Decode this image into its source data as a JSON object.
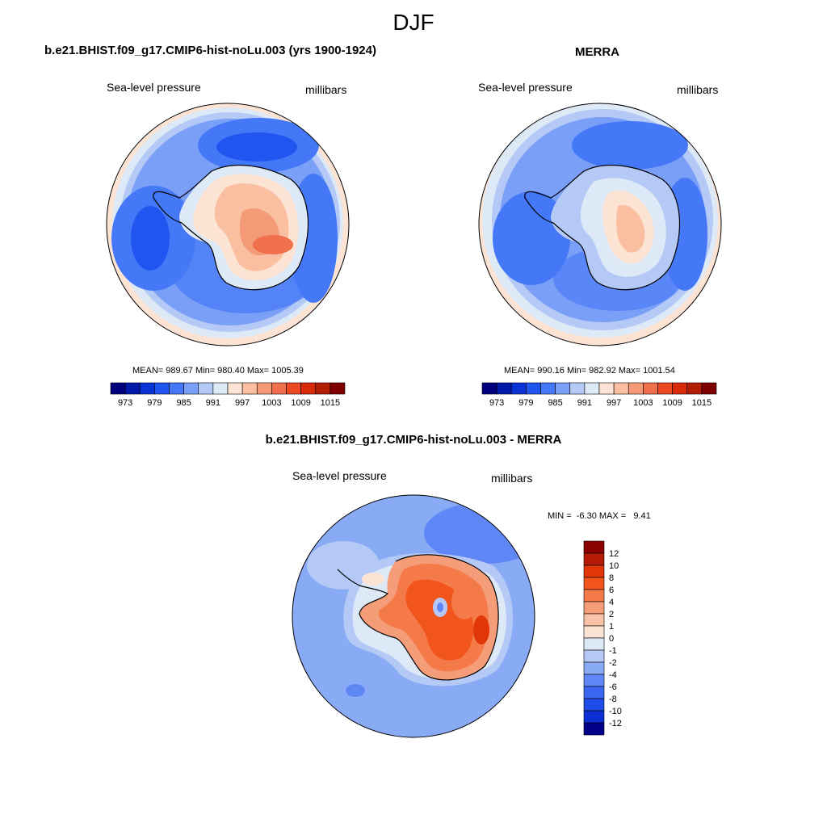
{
  "figure_title": "DJF",
  "panels": {
    "model": {
      "title": "b.e21.BHIST.f09_g17.CMIP6-hist-noLu.003 (yrs 1900-1924)",
      "left_label": "Sea-level pressure",
      "right_label": "millibars",
      "stats": "MEAN= 989.67  Min= 980.40  Max= 1005.39"
    },
    "obs": {
      "title": "MERRA",
      "left_label": "Sea-level pressure",
      "right_label": "millibars",
      "stats": "MEAN= 990.16  Min= 982.92  Max= 1001.54"
    },
    "diff": {
      "title": "b.e21.BHIST.f09_g17.CMIP6-hist-noLu.003 - MERRA",
      "left_label": "Sea-level pressure",
      "right_label": "millibars",
      "stats": "MIN =  -6.30 MAX =   9.41"
    }
  },
  "colorbar_abs": {
    "colors": [
      "#00007f",
      "#0019a8",
      "#0a33d6",
      "#2055f0",
      "#4578f7",
      "#7a9ff7",
      "#b5c9f7",
      "#dde9f7",
      "#fde3d3",
      "#f9bfa0",
      "#f49a76",
      "#f06f4c",
      "#ec4a23",
      "#d72b0a",
      "#b31d05",
      "#7f0000"
    ],
    "tick_labels": [
      "973",
      "979",
      "985",
      "991",
      "997",
      "1003",
      "1009",
      "1015"
    ],
    "tick_positions": [
      1,
      3,
      5,
      7,
      9,
      11,
      13,
      15
    ]
  },
  "colorbar_diff": {
    "colors": [
      "#8b0000",
      "#b41a05",
      "#e03608",
      "#f2551c",
      "#f47a4a",
      "#f59c78",
      "#f8c2a6",
      "#fde3d3",
      "#dde9f7",
      "#b5c9f7",
      "#89aaf5",
      "#5f87f5",
      "#3a66f2",
      "#1f4be8",
      "#0c2fd3",
      "#00008b"
    ],
    "tick_labels": [
      "12",
      "10",
      "8",
      "6",
      "4",
      "2",
      "1",
      "0",
      "-1",
      "-2",
      "-4",
      "-6",
      "-8",
      "-10",
      "-12"
    ]
  },
  "chart_data": [
    {
      "type": "heatmap",
      "title": "b.e21.BHIST.f09_g17.CMIP6-hist-noLu.003 (yrs 1900-1924)",
      "variable": "Sea-level pressure",
      "units": "millibars",
      "season": "DJF",
      "mean": 989.67,
      "min": 980.4,
      "max": 1005.39,
      "levels": [
        973,
        976,
        979,
        982,
        985,
        988,
        991,
        994,
        997,
        1000,
        1003,
        1006,
        1009,
        1012,
        1015
      ]
    },
    {
      "type": "heatmap",
      "title": "MERRA",
      "variable": "Sea-level pressure",
      "units": "millibars",
      "season": "DJF",
      "mean": 990.16,
      "min": 982.92,
      "max": 1001.54,
      "levels": [
        973,
        976,
        979,
        982,
        985,
        988,
        991,
        994,
        997,
        1000,
        1003,
        1006,
        1009,
        1012,
        1015
      ]
    },
    {
      "type": "heatmap",
      "title": "b.e21.BHIST.f09_g17.CMIP6-hist-noLu.003 - MERRA",
      "variable": "Sea-level pressure",
      "units": "millibars",
      "min": -6.3,
      "max": 9.41,
      "levels": [
        12,
        10,
        8,
        6,
        4,
        2,
        1,
        0,
        -1,
        -2,
        -4,
        -6,
        -8,
        -10,
        -12
      ]
    }
  ]
}
